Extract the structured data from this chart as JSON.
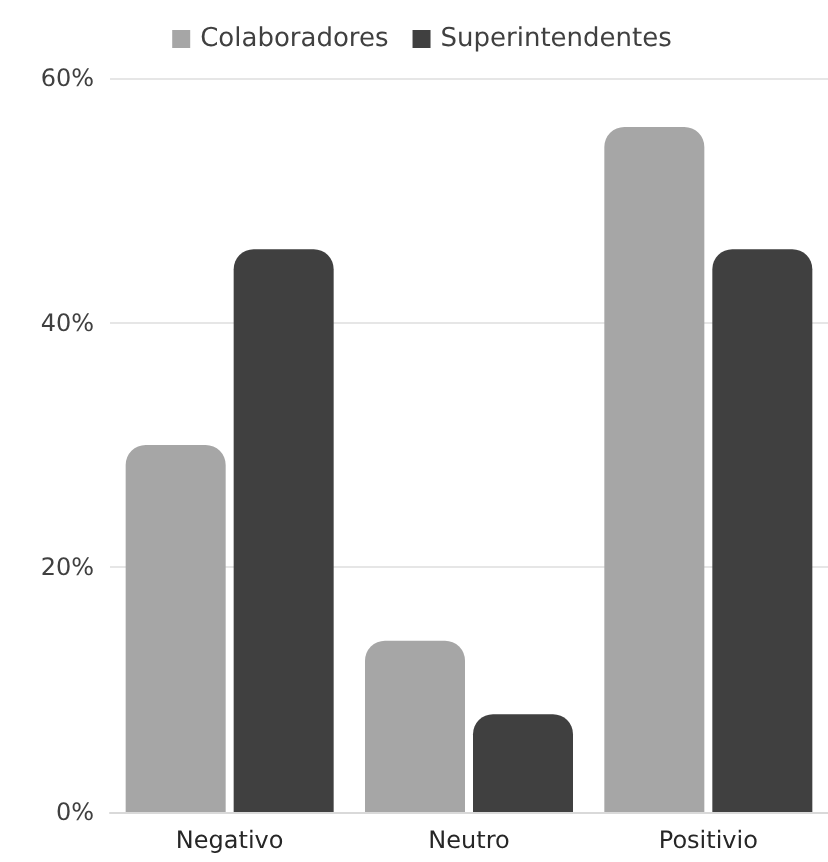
{
  "chart_data": {
    "type": "bar",
    "categories": [
      "Negativo",
      "Neutro",
      "Positivio"
    ],
    "series": [
      {
        "name": "Colaboradores",
        "color": "#a6a6a6",
        "values": [
          30,
          14,
          56
        ]
      },
      {
        "name": "Superintendentes",
        "color": "#404040",
        "values": [
          46,
          8,
          46
        ]
      }
    ],
    "ylim": [
      0,
      60
    ],
    "yticks": [
      {
        "value": 0,
        "label": "0%"
      },
      {
        "value": 20,
        "label": "20%"
      },
      {
        "value": 40,
        "label": "40%"
      },
      {
        "value": 60,
        "label": "60%"
      }
    ],
    "grid": "y",
    "legend": "top"
  }
}
